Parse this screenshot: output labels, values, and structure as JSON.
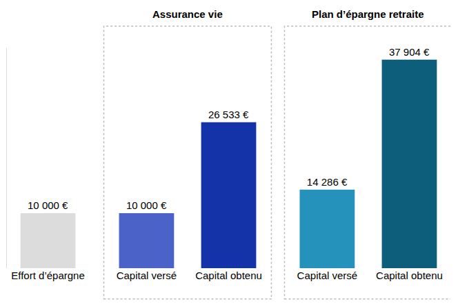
{
  "chart_data": {
    "type": "bar",
    "categories": [
      "Effort d’épargne",
      "Capital versé",
      "Capital obtenu",
      "Capital versé",
      "Capital obtenu"
    ],
    "values": [
      10000,
      10000,
      26533,
      14286,
      37904
    ],
    "value_labels": [
      "10 000 €",
      "10 000 €",
      "26 533 €",
      "14 286 €",
      "37 904 €"
    ],
    "colors": [
      "#dcdcdc",
      "#4b63c9",
      "#1433a8",
      "#2492bb",
      "#0d5e7b"
    ],
    "groups": [
      {
        "name": "Assurance vie",
        "members": [
          1,
          2
        ]
      },
      {
        "name": "Plan d’épargne retraite",
        "members": [
          3,
          4
        ]
      }
    ],
    "ylim": [
      0,
      40000
    ],
    "yticks": [],
    "data_labels": true,
    "tick_labels": "x",
    "grid": false
  }
}
